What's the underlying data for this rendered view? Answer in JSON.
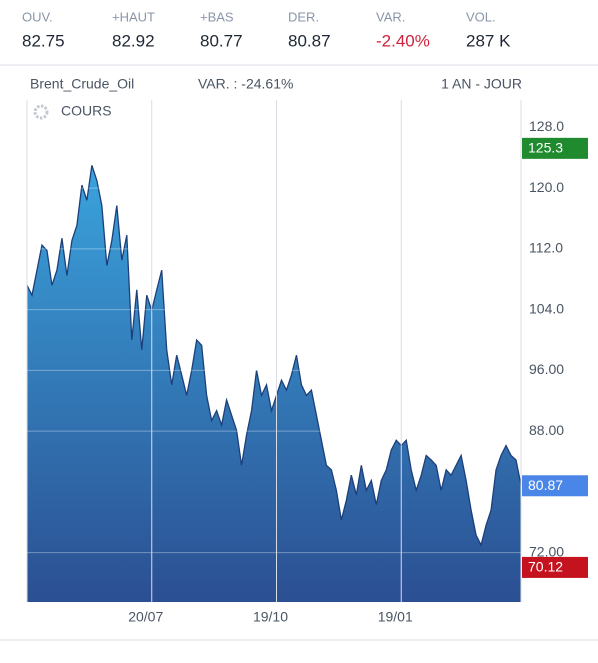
{
  "stats": [
    {
      "label": "OUV.",
      "value": "82.75"
    },
    {
      "label": "+HAUT",
      "value": "82.92"
    },
    {
      "label": "+BAS",
      "value": "80.77"
    },
    {
      "label": "DER.",
      "value": "80.87"
    },
    {
      "label": "VAR.",
      "value": "-2.40%",
      "color": "#d0223b"
    },
    {
      "label": "VOL.",
      "value": "287 K"
    }
  ],
  "chart_data": {
    "type": "area",
    "title": "Brent_Crude_Oil",
    "subtitle": "VAR. : -24.61%",
    "period": "1 AN - JOUR",
    "series_label": "COURS",
    "values": [
      107.2,
      105.9,
      109.2,
      112.5,
      111.8,
      107.2,
      109.2,
      113.4,
      108.5,
      113.1,
      115.1,
      120.4,
      118.4,
      123.0,
      121.0,
      117.7,
      109.8,
      113.1,
      117.7,
      110.5,
      113.8,
      100.0,
      106.6,
      98.7,
      105.9,
      103.9,
      106.6,
      109.2,
      98.7,
      94.1,
      98.0,
      95.4,
      92.7,
      96.0,
      100.0,
      99.3,
      92.7,
      89.4,
      90.7,
      88.8,
      92.1,
      90.1,
      88.1,
      83.5,
      87.5,
      90.7,
      96.0,
      92.7,
      94.1,
      90.7,
      92.7,
      94.7,
      93.4,
      95.4,
      98.0,
      94.1,
      92.7,
      93.4,
      90.1,
      86.8,
      83.5,
      82.9,
      80.2,
      76.3,
      78.9,
      82.2,
      79.6,
      83.5,
      80.2,
      81.5,
      78.3,
      81.5,
      82.9,
      85.5,
      86.8,
      86.1,
      86.8,
      82.9,
      80.2,
      82.2,
      84.8,
      84.2,
      83.5,
      80.2,
      82.9,
      82.2,
      83.5,
      84.8,
      81.5,
      77.6,
      74.3,
      73.0,
      75.6,
      77.6,
      82.9,
      84.8,
      86.1,
      84.8,
      84.2,
      80.9
    ],
    "xlim": [
      0,
      99
    ],
    "xticks": [
      {
        "value": 25,
        "label": "20/07"
      },
      {
        "value": 50,
        "label": "19/10"
      },
      {
        "value": 75,
        "label": "19/01"
      }
    ],
    "ylim": [
      65.5,
      131.6
    ],
    "yticks": [
      {
        "value": 72,
        "label": "72.00"
      },
      {
        "value": 88,
        "label": "88.00"
      },
      {
        "value": 96,
        "label": "96.00"
      },
      {
        "value": 104,
        "label": "104.0"
      },
      {
        "value": 112,
        "label": "112.0"
      },
      {
        "value": 120,
        "label": "120.0"
      },
      {
        "value": 128,
        "label": "128.0"
      }
    ],
    "grid": true,
    "color": "#3aa3dc",
    "color_bottom": "#2b4f92",
    "line_color": "#1d3f7a",
    "price_labels": [
      {
        "value": 125.3,
        "color": "#1f8a2e"
      },
      {
        "value": 80.87,
        "color": "#4a86e8"
      },
      {
        "value": 70.12,
        "color": "#c4121f"
      }
    ]
  }
}
